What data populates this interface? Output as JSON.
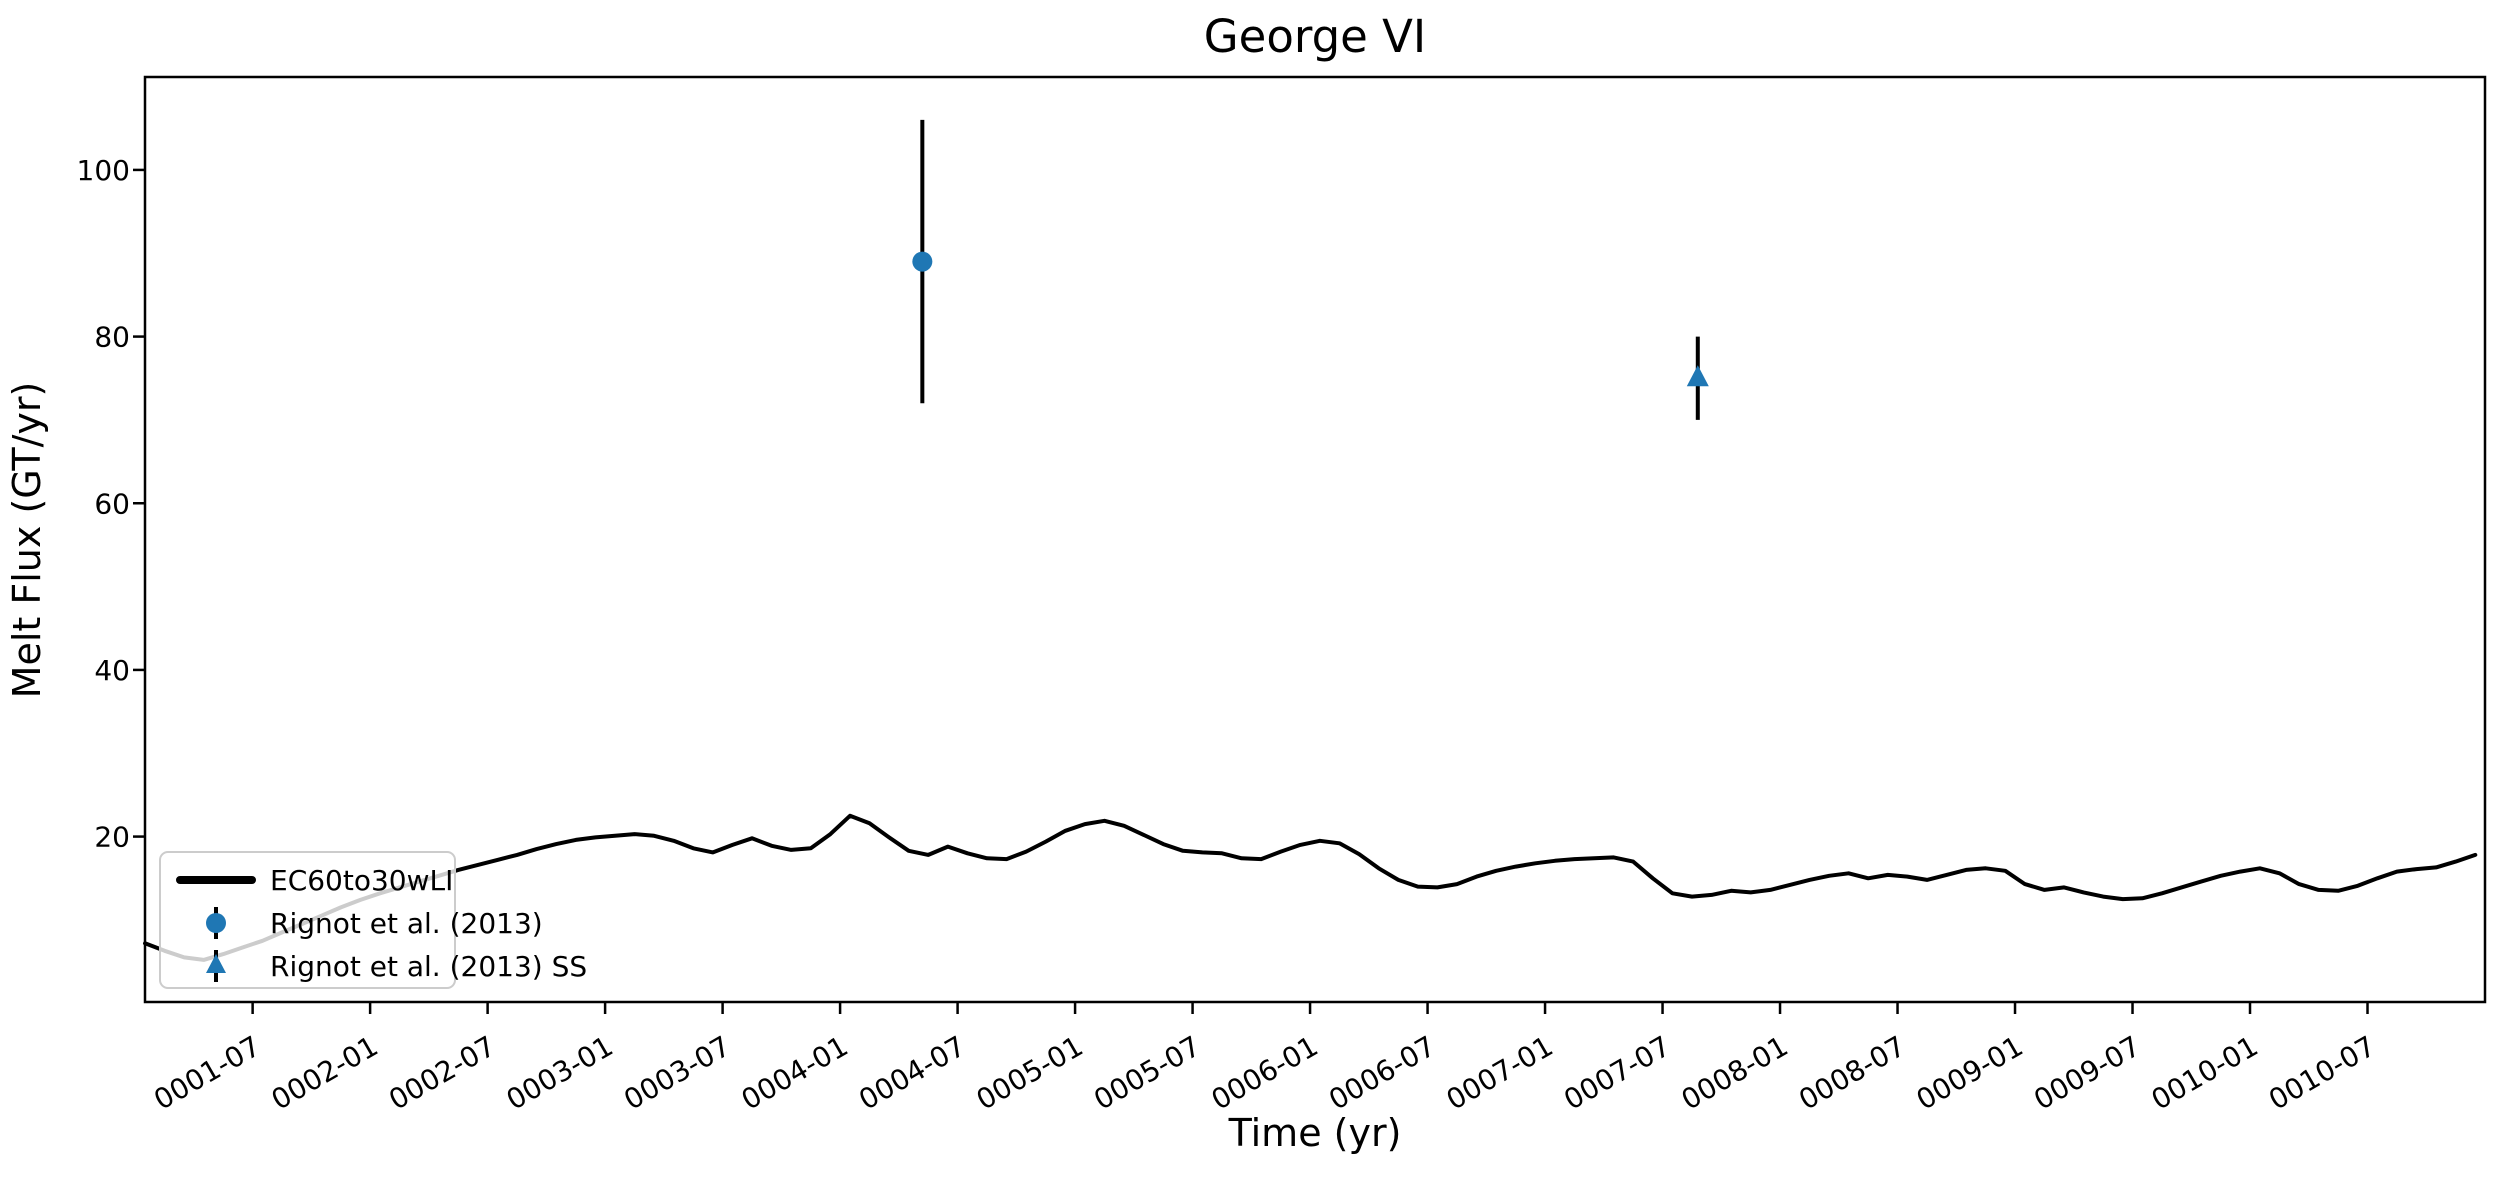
{
  "title": "George VI",
  "xlabel": "Time (yr)",
  "ylabel": "Melt Flux (GT/yr)",
  "colors": {
    "background": "#ffffff",
    "line": "#000000",
    "marker_blue": "#1f77b4",
    "axis": "#000000",
    "legend_border": "#cccccc",
    "legend_fill_rgba": "rgba(255,255,255,0.8)"
  },
  "legend": {
    "items": [
      {
        "label": "EC60to30wLI",
        "symbol": "line"
      },
      {
        "label": "Rignot et al. (2013)",
        "symbol": "circle-errorbar"
      },
      {
        "label": "Rignot et al. (2013) SS",
        "symbol": "triangle-errorbar"
      }
    ]
  },
  "chart_data": {
    "type": "line",
    "title": "George VI",
    "xlabel": "Time (yr)",
    "ylabel": "Melt Flux (GT/yr)",
    "xlim": [
      1.042,
      11.0
    ],
    "ylim": [
      0.15,
      111.15
    ],
    "grid": false,
    "legend_position": "lower-left",
    "x_ticks": [
      1.5,
      2.0,
      2.5,
      3.0,
      3.5,
      4.0,
      4.5,
      5.0,
      5.5,
      6.0,
      6.5,
      7.0,
      7.5,
      8.0,
      8.5,
      9.0,
      9.5,
      10.0,
      10.5
    ],
    "x_tick_labels": [
      "0001-07",
      "0002-01",
      "0002-07",
      "0003-01",
      "0003-07",
      "0004-01",
      "0004-07",
      "0005-01",
      "0005-07",
      "0006-01",
      "0006-07",
      "0007-01",
      "0007-07",
      "0008-01",
      "0008-07",
      "0009-01",
      "0009-07",
      "0010-01",
      "0010-07"
    ],
    "x_tick_rotation_deg": 30,
    "y_ticks": [
      20,
      40,
      60,
      80,
      100
    ],
    "series": [
      {
        "name": "EC60to30wLI",
        "type": "line",
        "color": "#000000",
        "x_start": 1.042,
        "x_step": 0.083333,
        "y": [
          7.2,
          6.3,
          5.5,
          5.2,
          5.9,
          6.7,
          7.5,
          8.5,
          9.5,
          10.5,
          11.5,
          12.4,
          13.2,
          13.9,
          14.6,
          15.3,
          16.0,
          16.6,
          17.2,
          17.8,
          18.5,
          19.1,
          19.6,
          19.9,
          20.1,
          20.3,
          20.1,
          19.5,
          18.6,
          18.1,
          19.0,
          19.8,
          18.9,
          18.4,
          18.6,
          20.3,
          22.5,
          21.6,
          19.9,
          18.3,
          17.8,
          18.8,
          18.0,
          17.4,
          17.3,
          18.2,
          19.4,
          20.7,
          21.5,
          21.9,
          21.3,
          20.2,
          19.1,
          18.3,
          18.1,
          18.0,
          17.4,
          17.3,
          18.2,
          19.0,
          19.5,
          19.2,
          17.9,
          16.2,
          14.8,
          14.0,
          13.9,
          14.3,
          15.2,
          15.9,
          16.4,
          16.8,
          17.1,
          17.3,
          17.4,
          17.5,
          17.0,
          15.0,
          13.2,
          12.8,
          13.0,
          13.5,
          13.3,
          13.6,
          14.2,
          14.8,
          15.3,
          15.6,
          15.0,
          15.4,
          15.2,
          14.8,
          15.4,
          16.0,
          16.2,
          15.9,
          14.3,
          13.6,
          13.9,
          13.3,
          12.8,
          12.5,
          12.6,
          13.2,
          13.9,
          14.6,
          15.3,
          15.8,
          16.2,
          15.6,
          14.3,
          13.6,
          13.5,
          14.1,
          15.0,
          15.8,
          16.1,
          16.3,
          17.0,
          17.8
        ]
      },
      {
        "name": "Rignot et al. (2013)",
        "type": "scatter-errorbar",
        "marker": "circle",
        "color": "#1f77b4",
        "points": [
          {
            "x": 4.35,
            "y": 89,
            "y_lo": 72,
            "y_hi": 106
          }
        ]
      },
      {
        "name": "Rignot et al. (2013) SS",
        "type": "scatter-errorbar",
        "marker": "triangle",
        "color": "#1f77b4",
        "points": [
          {
            "x": 7.65,
            "y": 75,
            "y_lo": 70,
            "y_hi": 80
          }
        ]
      }
    ]
  }
}
